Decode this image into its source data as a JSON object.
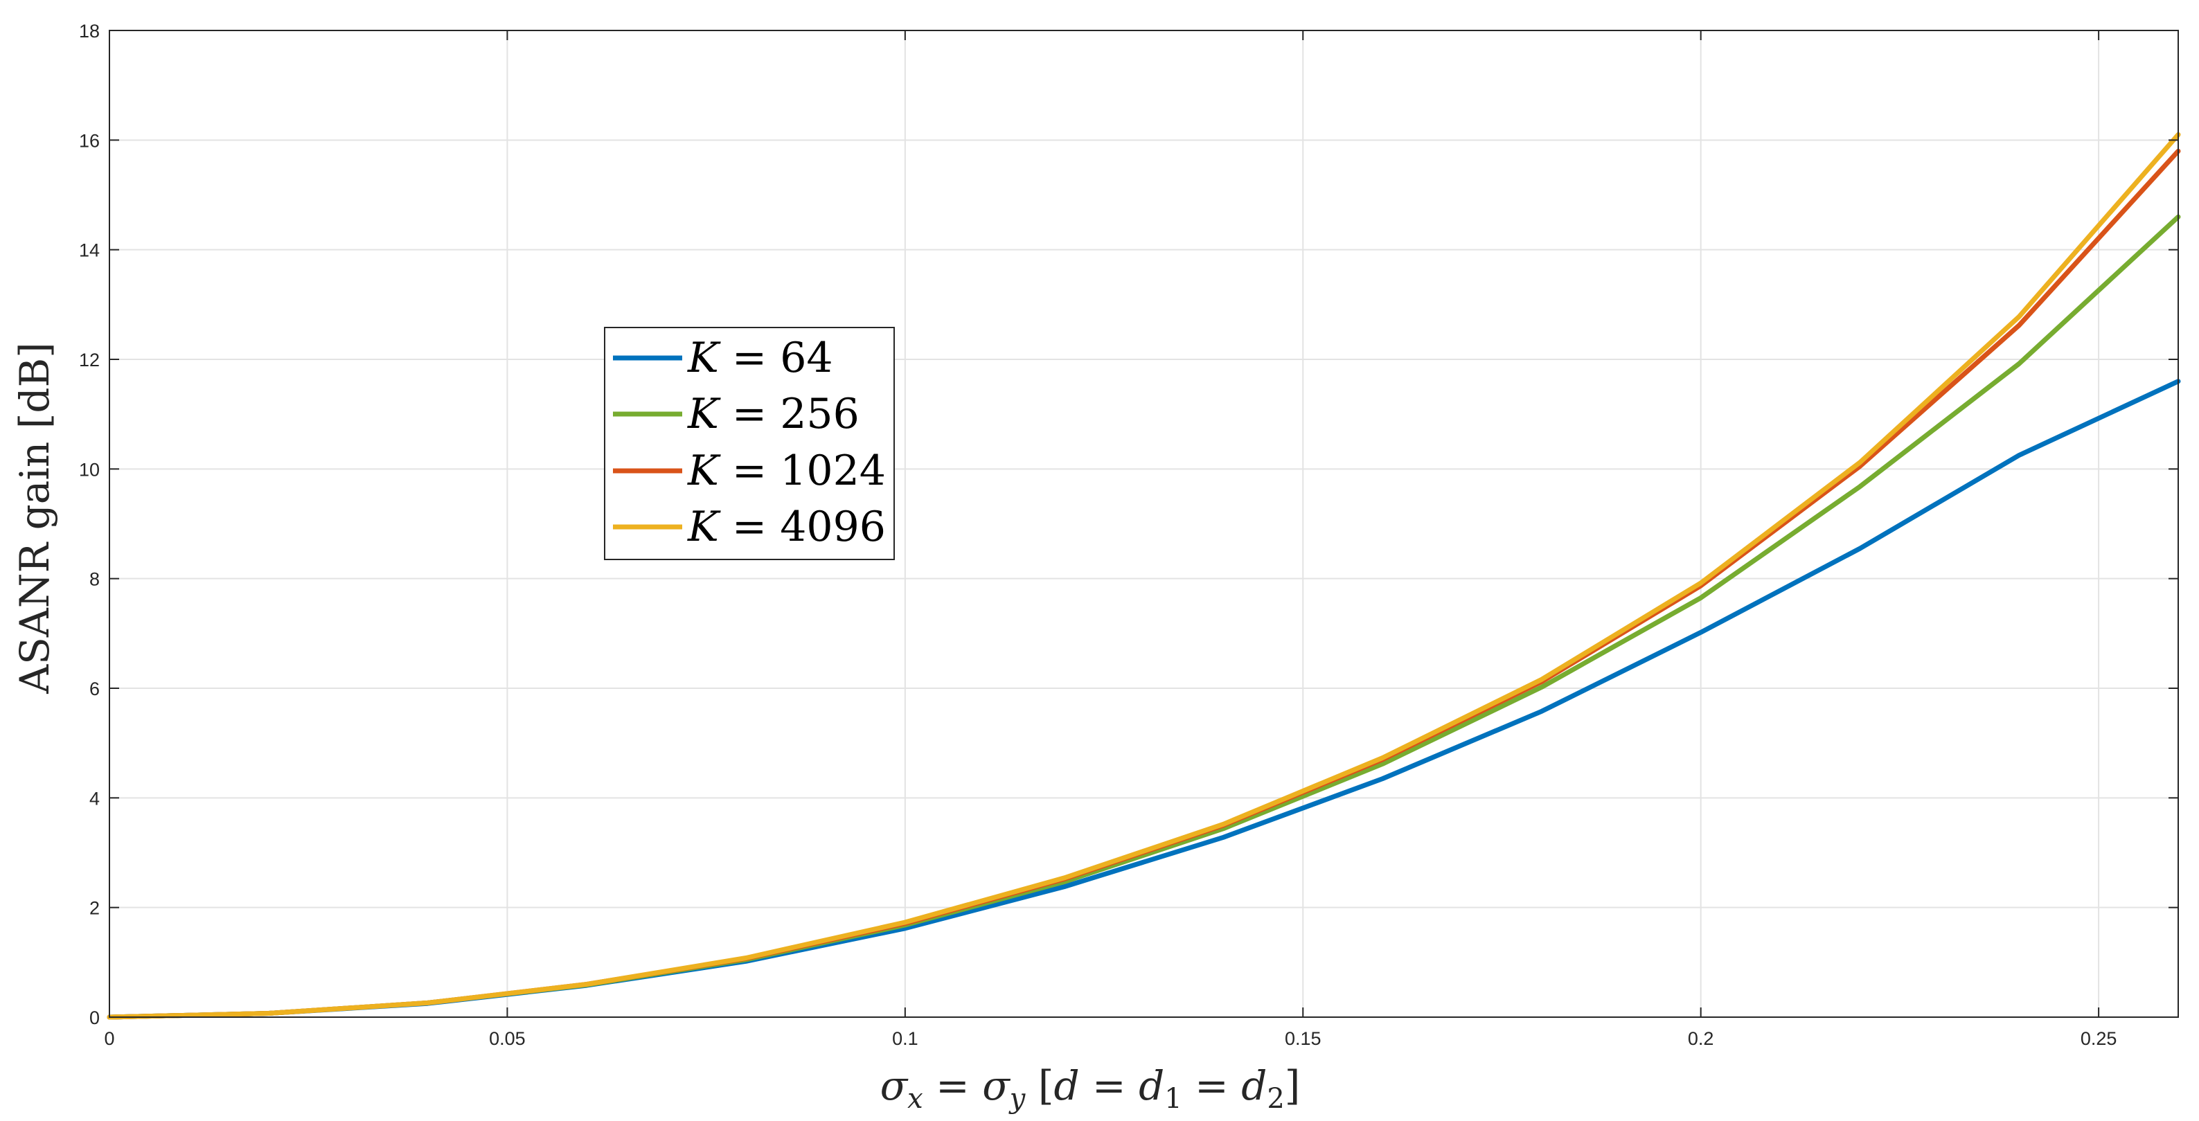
{
  "chart_data": {
    "type": "line",
    "title": "",
    "xlabel": "σx = σy [d = d1 = d2]",
    "xlabel_parts": {
      "sigma1": "σ",
      "sub1": "x",
      "eq": " = ",
      "sigma2": "σ",
      "sub2": "y",
      "bracket_open": " [",
      "d": "d",
      "eq2": " = ",
      "d1": "d",
      "sub3": "1",
      "eq3": " = ",
      "d2": "d",
      "sub4": "2",
      "bracket_close": "]"
    },
    "ylabel": "ASANR gain [dB]",
    "xlim": [
      0,
      0.26
    ],
    "ylim": [
      0,
      18
    ],
    "grid": true,
    "legend_position": "center-left",
    "xticks": [
      0,
      0.05,
      0.1,
      0.15,
      0.2,
      0.25
    ],
    "xtick_labels": [
      "0",
      "0.05",
      "0.1",
      "0.15",
      "0.2",
      "0.25"
    ],
    "yticks": [
      0,
      2,
      4,
      6,
      8,
      10,
      12,
      14,
      16,
      18
    ],
    "ytick_labels": [
      "0",
      "2",
      "4",
      "6",
      "8",
      "10",
      "12",
      "14",
      "16",
      "18"
    ],
    "x": [
      0,
      0.02,
      0.04,
      0.06,
      0.08,
      0.1,
      0.12,
      0.14,
      0.16,
      0.18,
      0.2,
      0.22,
      0.24,
      0.26
    ],
    "series": [
      {
        "name": "K = 64",
        "name_var": "K",
        "name_val": "64",
        "color": "#0072BD",
        "values": [
          0,
          0.07,
          0.25,
          0.58,
          1.02,
          1.62,
          2.38,
          3.28,
          4.35,
          5.58,
          7.02,
          8.55,
          10.25,
          11.6
        ]
      },
      {
        "name": "K = 256",
        "name_var": "K",
        "name_val": "256",
        "color": "#77AC30",
        "values": [
          0,
          0.07,
          0.26,
          0.59,
          1.05,
          1.68,
          2.47,
          3.44,
          4.62,
          6.02,
          7.65,
          9.68,
          11.92,
          14.6
        ]
      },
      {
        "name": "K = 1024",
        "name_var": "K",
        "name_val": "1024",
        "color": "#D95319",
        "values": [
          0,
          0.07,
          0.26,
          0.6,
          1.07,
          1.71,
          2.52,
          3.5,
          4.7,
          6.12,
          7.87,
          10.05,
          12.62,
          15.8
        ]
      },
      {
        "name": "K = 4096",
        "name_var": "K",
        "name_val": "4096",
        "color": "#EDB120",
        "values": [
          0,
          0.07,
          0.26,
          0.6,
          1.08,
          1.73,
          2.54,
          3.52,
          4.73,
          6.16,
          7.92,
          10.12,
          12.78,
          16.1
        ]
      }
    ]
  }
}
